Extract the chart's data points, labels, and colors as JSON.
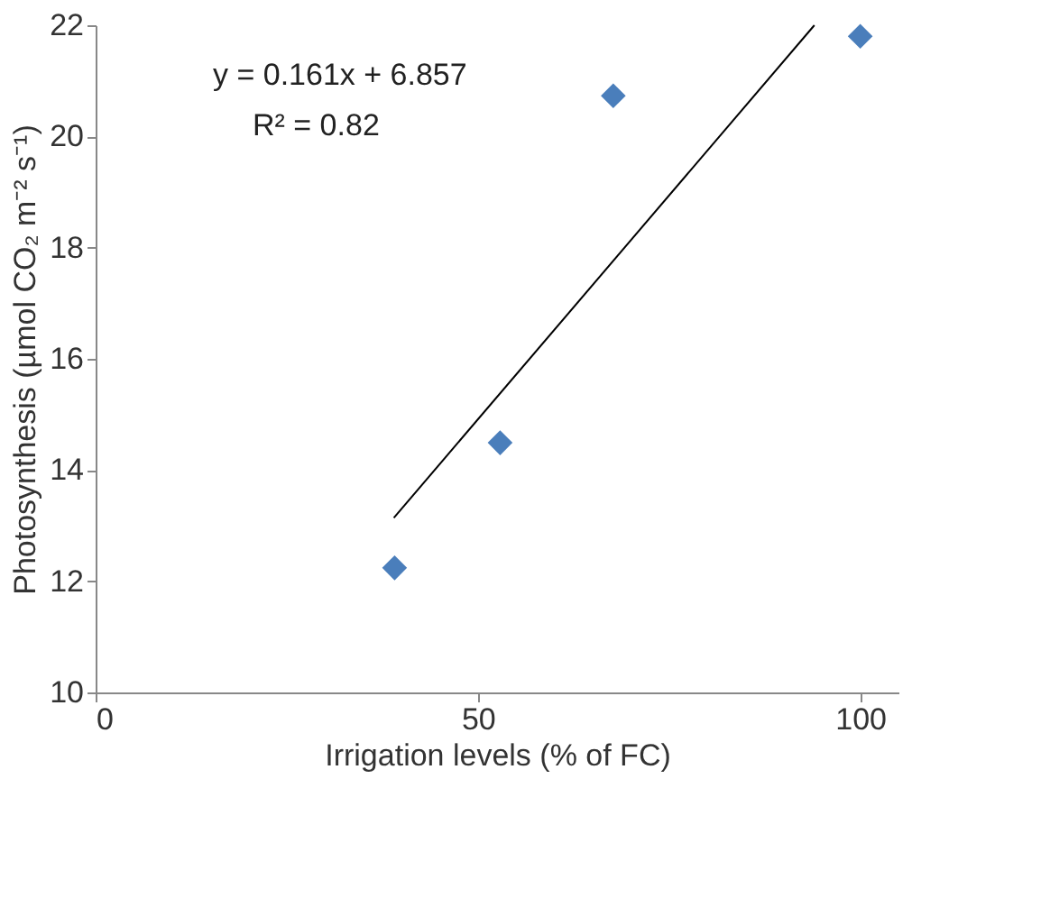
{
  "chart_data": {
    "type": "scatter",
    "xlabel": "Irrigation levels (% of FC)",
    "ylabel": "Photosynthesis (µmol CO₂ m⁻² s⁻¹)",
    "xlim": [
      0,
      105
    ],
    "xticks": [
      0,
      50,
      100
    ],
    "ylim": [
      10,
      22
    ],
    "yticks": [
      10,
      12,
      14,
      16,
      18,
      20,
      22
    ],
    "grid": false,
    "marker": "diamond",
    "series": [
      {
        "color": "#4a7ebb",
        "x": [
          39.1,
          52.9,
          67.7,
          100
        ],
        "values": [
          12.24,
          14.49,
          20.73,
          21.8
        ]
      },
      {
        "type": "line",
        "color": "#000000",
        "marker": "none",
        "x": [
          39,
          94
        ],
        "values": [
          13.14,
          22.0
        ]
      }
    ],
    "annotations": [
      "y = 0.161x + 6.857",
      "R² = 0.82"
    ]
  }
}
